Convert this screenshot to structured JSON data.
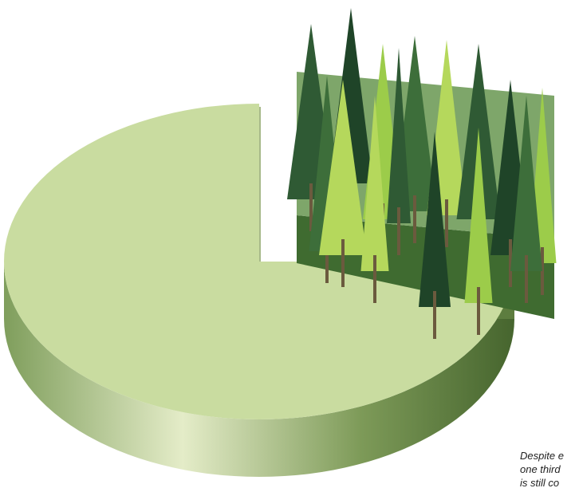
{
  "chart_data": {
    "type": "pie",
    "values": [
      75,
      25
    ],
    "colors": [
      "#c9dca0",
      "#3f6b34"
    ],
    "counterclock": true,
    "annotation": [
      "Despite e",
      "one third",
      "is still co"
    ]
  }
}
